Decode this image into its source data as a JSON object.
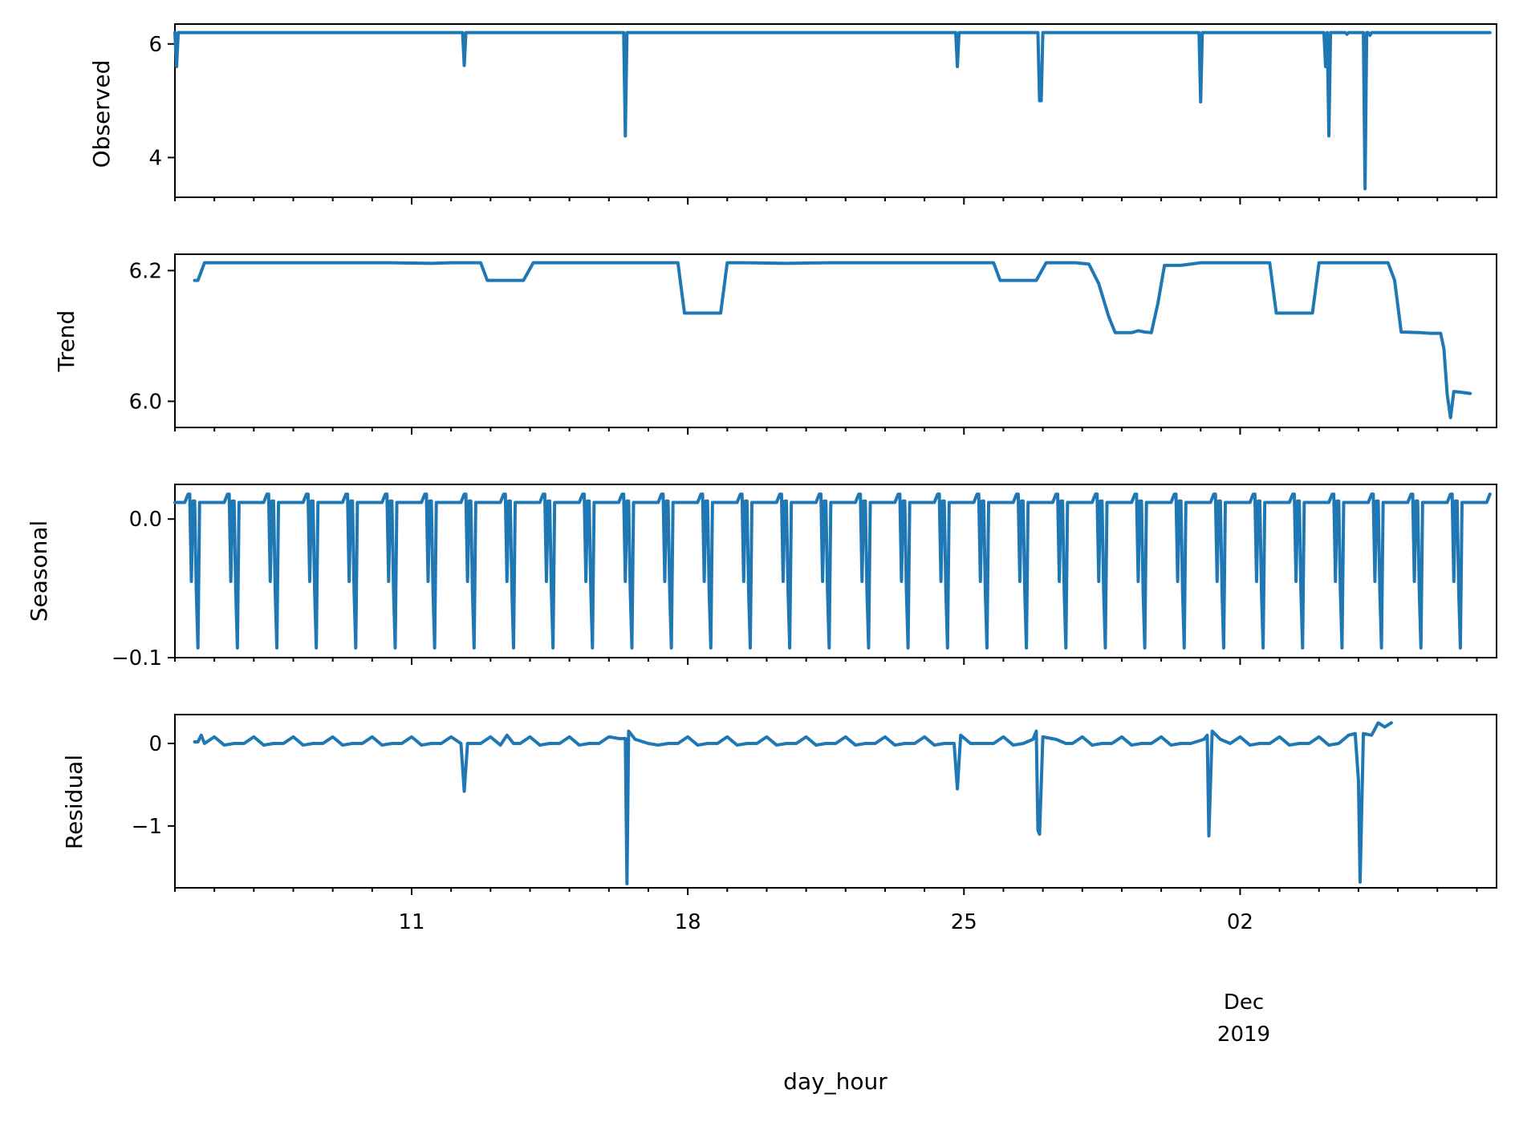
{
  "chart_data": {
    "type": "line",
    "x_axis": {
      "label": "day_hour",
      "unit": "datetime",
      "range": [
        "2019-11-05T00:00",
        "2019-12-08T12:00"
      ],
      "major_ticks": [
        {
          "date": "2019-11-11",
          "label": "11"
        },
        {
          "date": "2019-11-18",
          "label": "18"
        },
        {
          "date": "2019-11-25",
          "label": "25"
        },
        {
          "date": "2019-12-02",
          "label": "02"
        }
      ],
      "offset_label": [
        "Dec",
        "2019"
      ]
    },
    "series_color": "#1f77b4",
    "panels": [
      {
        "ylabel": "Observed",
        "ylim": [
          3.3,
          6.35
        ],
        "yticks": [
          {
            "value": 4,
            "label": "4"
          },
          {
            "value": 6,
            "label": "6"
          }
        ],
        "baseline": 6.2,
        "points": [
          [
            "2019-11-05T00:00",
            6.2
          ],
          [
            "2019-11-05T01:00",
            5.6
          ],
          [
            "2019-11-05T02:00",
            6.2
          ],
          [
            "2019-11-12T07:00",
            6.2
          ],
          [
            "2019-11-12T08:00",
            5.62
          ],
          [
            "2019-11-12T09:00",
            6.2
          ],
          [
            "2019-11-16T09:00",
            6.2
          ],
          [
            "2019-11-16T10:00",
            4.38
          ],
          [
            "2019-11-16T11:00",
            6.2
          ],
          [
            "2019-11-24T19:00",
            6.2
          ],
          [
            "2019-11-24T20:00",
            5.6
          ],
          [
            "2019-11-24T21:00",
            6.2
          ],
          [
            "2019-11-26T21:00",
            6.2
          ],
          [
            "2019-11-26T22:00",
            5.0
          ],
          [
            "2019-11-26T23:00",
            5.0
          ],
          [
            "2019-11-27T00:00",
            6.2
          ],
          [
            "2019-11-30T23:00",
            6.2
          ],
          [
            "2019-12-01T00:00",
            4.98
          ],
          [
            "2019-12-01T01:00",
            6.2
          ],
          [
            "2019-12-04T03:00",
            6.2
          ],
          [
            "2019-12-04T04:00",
            5.6
          ],
          [
            "2019-12-04T05:00",
            6.2
          ],
          [
            "2019-12-04T06:00",
            4.38
          ],
          [
            "2019-12-04T07:00",
            6.2
          ],
          [
            "2019-12-04T16:00",
            6.2
          ],
          [
            "2019-12-04T17:00",
            6.17
          ],
          [
            "2019-12-04T18:00",
            6.2
          ],
          [
            "2019-12-05T03:00",
            6.2
          ],
          [
            "2019-12-05T04:00",
            3.45
          ],
          [
            "2019-12-05T05:00",
            6.2
          ],
          [
            "2019-12-05T06:00",
            6.2
          ],
          [
            "2019-12-05T07:00",
            6.15
          ],
          [
            "2019-12-05T08:00",
            6.2
          ]
        ]
      },
      {
        "ylabel": "Trend",
        "ylim": [
          5.96,
          6.225
        ],
        "yticks": [
          {
            "value": 6.0,
            "label": "6.0"
          },
          {
            "value": 6.2,
            "label": "6.2"
          }
        ],
        "points": [
          [
            "2019-11-05T12:00",
            6.185
          ],
          [
            "2019-11-05T14:00",
            6.185
          ],
          [
            "2019-11-05T18:00",
            6.212
          ],
          [
            "2019-11-10T12:00",
            6.212
          ],
          [
            "2019-11-11T12:00",
            6.211
          ],
          [
            "2019-11-12T00:00",
            6.212
          ],
          [
            "2019-11-12T18:00",
            6.212
          ],
          [
            "2019-11-12T22:00",
            6.185
          ],
          [
            "2019-11-13T20:00",
            6.185
          ],
          [
            "2019-11-14T02:00",
            6.212
          ],
          [
            "2019-11-17T18:00",
            6.212
          ],
          [
            "2019-11-17T22:00",
            6.135
          ],
          [
            "2019-11-18T20:00",
            6.135
          ],
          [
            "2019-11-19T00:00",
            6.212
          ],
          [
            "2019-11-19T12:00",
            6.212
          ],
          [
            "2019-11-20T12:00",
            6.211
          ],
          [
            "2019-11-21T12:00",
            6.212
          ],
          [
            "2019-11-25T18:00",
            6.212
          ],
          [
            "2019-11-25T22:00",
            6.185
          ],
          [
            "2019-11-26T20:00",
            6.185
          ],
          [
            "2019-11-27T02:00",
            6.212
          ],
          [
            "2019-11-27T20:00",
            6.212
          ],
          [
            "2019-11-28T04:00",
            6.21
          ],
          [
            "2019-11-28T10:00",
            6.18
          ],
          [
            "2019-11-28T16:00",
            6.13
          ],
          [
            "2019-11-28T20:00",
            6.105
          ],
          [
            "2019-11-29T06:00",
            6.105
          ],
          [
            "2019-11-29T10:00",
            6.108
          ],
          [
            "2019-11-29T14:00",
            6.106
          ],
          [
            "2019-11-29T18:00",
            6.105
          ],
          [
            "2019-11-29T22:00",
            6.15
          ],
          [
            "2019-11-30T02:00",
            6.208
          ],
          [
            "2019-11-30T12:00",
            6.208
          ],
          [
            "2019-12-01T00:00",
            6.212
          ],
          [
            "2019-12-02T18:00",
            6.212
          ],
          [
            "2019-12-02T22:00",
            6.135
          ],
          [
            "2019-12-03T20:00",
            6.135
          ],
          [
            "2019-12-04T00:00",
            6.212
          ],
          [
            "2019-12-05T18:00",
            6.212
          ],
          [
            "2019-12-05T22:00",
            6.185
          ],
          [
            "2019-12-06T02:00",
            6.106
          ],
          [
            "2019-12-06T14:00",
            6.105
          ],
          [
            "2019-12-06T20:00",
            6.104
          ],
          [
            "2019-12-07T02:00",
            6.104
          ],
          [
            "2019-12-07T04:00",
            6.08
          ],
          [
            "2019-12-07T06:00",
            6.01
          ],
          [
            "2019-12-07T08:00",
            5.975
          ],
          [
            "2019-12-07T10:00",
            6.015
          ],
          [
            "2019-12-07T14:00",
            6.014
          ],
          [
            "2019-12-07T20:00",
            6.012
          ]
        ]
      },
      {
        "ylabel": "Seasonal",
        "ylim": [
          -0.1,
          0.025
        ],
        "yticks": [
          {
            "value": -0.1,
            "label": "−0.1"
          },
          {
            "value": 0.0,
            "label": "0.0"
          }
        ],
        "period_hours": 24,
        "daily_pattern": [
          0.012,
          0.012,
          0.012,
          0.012,
          0.012,
          0.012,
          0.012,
          0.015,
          0.018,
          0.018,
          -0.045,
          0.013,
          0.013,
          -0.052,
          -0.093,
          0.012,
          0.012,
          0.012,
          0.012,
          0.012,
          0.012,
          0.012,
          0.012,
          0.012
        ]
      },
      {
        "ylabel": "Residual",
        "ylim": [
          -1.75,
          0.35
        ],
        "yticks": [
          {
            "value": -1,
            "label": "−1"
          },
          {
            "value": 0,
            "label": "0"
          }
        ],
        "points": [
          [
            "2019-11-05T12:00",
            0.02
          ],
          [
            "2019-11-05T14:00",
            0.02
          ],
          [
            "2019-11-05T16:00",
            0.1
          ],
          [
            "2019-11-05T18:00",
            0.0
          ],
          [
            "2019-11-12T06:00",
            0.0
          ],
          [
            "2019-11-12T08:00",
            -0.58
          ],
          [
            "2019-11-12T10:00",
            0.0
          ],
          [
            "2019-11-13T10:00",
            0.1
          ],
          [
            "2019-11-13T14:00",
            0.0
          ],
          [
            "2019-11-16T06:00",
            0.06
          ],
          [
            "2019-11-16T10:00",
            0.06
          ],
          [
            "2019-11-16T11:00",
            -1.7
          ],
          [
            "2019-11-16T12:00",
            0.15
          ],
          [
            "2019-11-16T16:00",
            0.05
          ],
          [
            "2019-11-17T00:00",
            0.0
          ],
          [
            "2019-11-24T18:00",
            0.0
          ],
          [
            "2019-11-24T20:00",
            -0.55
          ],
          [
            "2019-11-24T22:00",
            0.1
          ],
          [
            "2019-11-25T04:00",
            0.0
          ],
          [
            "2019-11-26T18:00",
            0.05
          ],
          [
            "2019-11-26T20:00",
            0.15
          ],
          [
            "2019-11-26T21:00",
            -1.05
          ],
          [
            "2019-11-26T22:00",
            -1.1
          ],
          [
            "2019-11-27T00:00",
            0.08
          ],
          [
            "2019-11-27T08:00",
            0.05
          ],
          [
            "2019-11-27T14:00",
            0.0
          ],
          [
            "2019-12-01T02:00",
            0.05
          ],
          [
            "2019-12-01T04:00",
            0.1
          ],
          [
            "2019-12-01T05:00",
            -1.12
          ],
          [
            "2019-12-01T07:00",
            0.15
          ],
          [
            "2019-12-01T12:00",
            0.05
          ],
          [
            "2019-12-01T18:00",
            0.0
          ],
          [
            "2019-12-04T18:00",
            0.1
          ],
          [
            "2019-12-04T22:00",
            0.12
          ],
          [
            "2019-12-05T00:00",
            -0.45
          ],
          [
            "2019-12-05T01:00",
            -1.68
          ],
          [
            "2019-12-05T03:00",
            0.12
          ],
          [
            "2019-12-05T08:00",
            0.1
          ],
          [
            "2019-12-05T12:00",
            0.25
          ],
          [
            "2019-12-05T16:00",
            0.2
          ],
          [
            "2019-12-05T20:00",
            0.25
          ]
        ]
      }
    ]
  }
}
